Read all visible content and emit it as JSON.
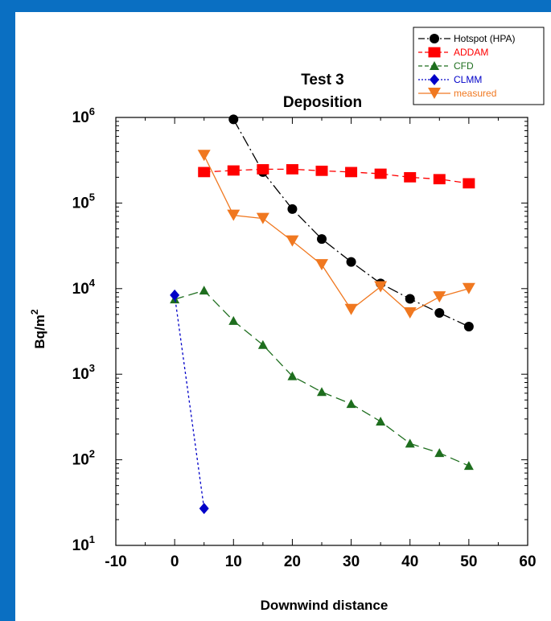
{
  "chart_data": {
    "type": "line",
    "title_line1": "Test 3",
    "title_line2": "Deposition",
    "xlabel": "Downwind distance",
    "ylabel": "Bq/m",
    "ylabel_sup": "2",
    "xlim": [
      -10,
      60
    ],
    "ylim": [
      10,
      1000000
    ],
    "yscale": "log",
    "x_ticks": [
      "-10",
      "0",
      "10",
      "20",
      "30",
      "40",
      "50",
      "60"
    ],
    "y_ticks": [
      {
        "base": "10",
        "exp": "1"
      },
      {
        "base": "10",
        "exp": "2"
      },
      {
        "base": "10",
        "exp": "3"
      },
      {
        "base": "10",
        "exp": "4"
      },
      {
        "base": "10",
        "exp": "5"
      },
      {
        "base": "10",
        "exp": "6"
      }
    ],
    "legend_position": "top-right",
    "series": [
      {
        "name": "Hotspot (HPA)",
        "color": "#000000",
        "marker": "circle",
        "dash": "long-dash-dot",
        "x": [
          10,
          15,
          20,
          25,
          30,
          35,
          40,
          45,
          50
        ],
        "y": [
          950000,
          230000,
          85000,
          38000,
          20500,
          11500,
          7600,
          5200,
          3600
        ]
      },
      {
        "name": "ADDAM",
        "color": "#ff0000",
        "marker": "square",
        "dash": "dash",
        "x": [
          5,
          10,
          15,
          20,
          25,
          30,
          35,
          40,
          45,
          50
        ],
        "y": [
          230000,
          240000,
          248000,
          248000,
          238000,
          230000,
          220000,
          200000,
          190000,
          170000
        ]
      },
      {
        "name": "CFD",
        "color": "#1e6e1e",
        "marker": "triangle-up",
        "dash": "long-dash",
        "x": [
          0,
          5,
          10,
          15,
          20,
          25,
          30,
          35,
          40,
          45,
          50
        ],
        "y": [
          7500,
          9500,
          4200,
          2200,
          950,
          620,
          450,
          280,
          155,
          120,
          85
        ]
      },
      {
        "name": "CLMM",
        "color": "#0000c8",
        "marker": "diamond",
        "dash": "dot",
        "x": [
          0,
          5
        ],
        "y": [
          8400,
          27
        ]
      },
      {
        "name": "measured",
        "color": "#f07820",
        "marker": "triangle-down",
        "dash": "solid",
        "x": [
          5,
          10,
          15,
          20,
          25,
          30,
          35,
          40,
          45,
          50
        ],
        "y": [
          360000,
          72000,
          66000,
          36000,
          19000,
          5700,
          10500,
          5200,
          8000,
          10000
        ]
      }
    ]
  }
}
